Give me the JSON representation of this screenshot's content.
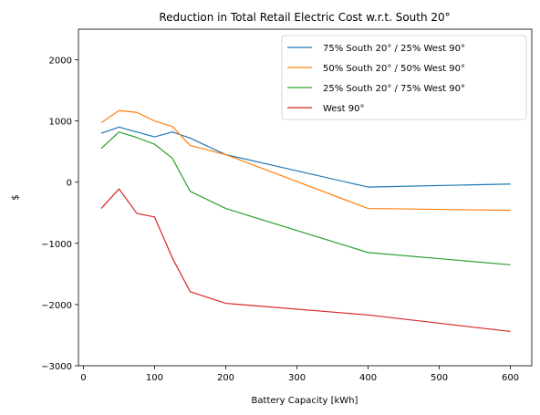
{
  "chart_data": {
    "type": "line",
    "title": "Reduction in Total Retail Electric Cost w.r.t. South 20°",
    "xlabel": "Battery Capacity [kWh]",
    "ylabel": "$",
    "xlim": [
      -7,
      630
    ],
    "ylim": [
      -3000,
      2500
    ],
    "xticks": [
      0,
      100,
      200,
      300,
      400,
      500,
      600
    ],
    "yticks": [
      -3000,
      -2000,
      -1000,
      0,
      1000,
      2000
    ],
    "grid": false,
    "legend_position": "top-right",
    "series": [
      {
        "name": "75% South 20° / 25% West 90°",
        "color": "#1f77b4",
        "x": [
          25,
          50,
          75,
          100,
          125,
          150,
          200,
          400,
          600
        ],
        "y": [
          800,
          900,
          820,
          740,
          820,
          720,
          450,
          -80,
          -30
        ]
      },
      {
        "name": "50% South 20° / 50% West 90°",
        "color": "#ff7f0e",
        "x": [
          25,
          50,
          75,
          100,
          125,
          150,
          200,
          400,
          600
        ],
        "y": [
          970,
          1170,
          1140,
          1000,
          910,
          600,
          450,
          -430,
          -460
        ]
      },
      {
        "name": "25% South 20° / 75% West 90°",
        "color": "#2ca02c",
        "x": [
          25,
          50,
          75,
          100,
          125,
          150,
          200,
          400,
          600
        ],
        "y": [
          550,
          820,
          730,
          620,
          390,
          -150,
          -430,
          -1150,
          -1350
        ]
      },
      {
        "name": "West 90°",
        "color": "#d62728",
        "x": [
          25,
          50,
          75,
          100,
          125,
          150,
          200,
          400,
          600
        ],
        "y": [
          -430,
          -110,
          -510,
          -570,
          -1240,
          -1790,
          -1980,
          -2170,
          -2440
        ]
      }
    ]
  }
}
